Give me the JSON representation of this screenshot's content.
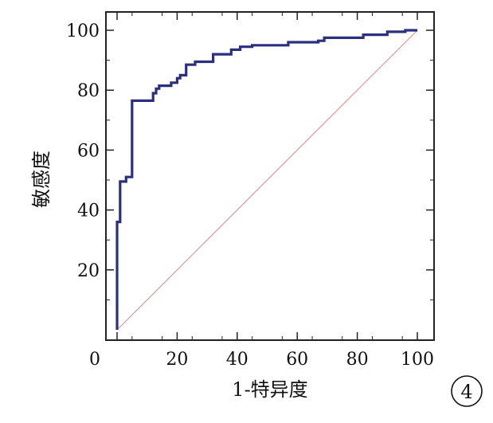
{
  "chart_data": {
    "type": "line",
    "xlabel": "1-特异度",
    "ylabel": "敏感度",
    "xlim": [
      0,
      100
    ],
    "ylim": [
      0,
      100
    ],
    "x_ticks": [
      "0",
      "20",
      "40",
      "60",
      "80",
      "100"
    ],
    "y_ticks": [
      "20",
      "40",
      "60",
      "80",
      "100"
    ],
    "grid": false,
    "legend": "none",
    "series": [
      {
        "style": "step",
        "color": "#2b2f7e",
        "points": [
          [
            0,
            0
          ],
          [
            0,
            36
          ],
          [
            1,
            36
          ],
          [
            1,
            49.5
          ],
          [
            3,
            49.5
          ],
          [
            3,
            51
          ],
          [
            5,
            51
          ],
          [
            5,
            76.5
          ],
          [
            12,
            76.5
          ],
          [
            12,
            79
          ],
          [
            13,
            79
          ],
          [
            13,
            80.5
          ],
          [
            14,
            80.5
          ],
          [
            14,
            81.5
          ],
          [
            18,
            81.5
          ],
          [
            18,
            82.5
          ],
          [
            20,
            82.5
          ],
          [
            20,
            84
          ],
          [
            21,
            84
          ],
          [
            21,
            85
          ],
          [
            23,
            85
          ],
          [
            23,
            88.5
          ],
          [
            26,
            88.5
          ],
          [
            26,
            89.5
          ],
          [
            32,
            89.5
          ],
          [
            32,
            92
          ],
          [
            38,
            92
          ],
          [
            38,
            93.5
          ],
          [
            41,
            93.5
          ],
          [
            41,
            94.5
          ],
          [
            45,
            94.5
          ],
          [
            45,
            95
          ],
          [
            57,
            95
          ],
          [
            57,
            96
          ],
          [
            67,
            96
          ],
          [
            67,
            96.5
          ],
          [
            69,
            96.5
          ],
          [
            69,
            97.5
          ],
          [
            82,
            97.5
          ],
          [
            82,
            98.5
          ],
          [
            90,
            98.5
          ],
          [
            90,
            99.5
          ],
          [
            96,
            99.5
          ],
          [
            96,
            100
          ],
          [
            100,
            100
          ]
        ]
      },
      {
        "style": "reference",
        "color": "#d59a9a",
        "points": [
          [
            0,
            0
          ],
          [
            100,
            100
          ]
        ]
      }
    ]
  },
  "panel_label": "4",
  "colors": {
    "frame": "#222222",
    "roc": "#2b2f7e",
    "diagonal": "#d59a9a"
  }
}
